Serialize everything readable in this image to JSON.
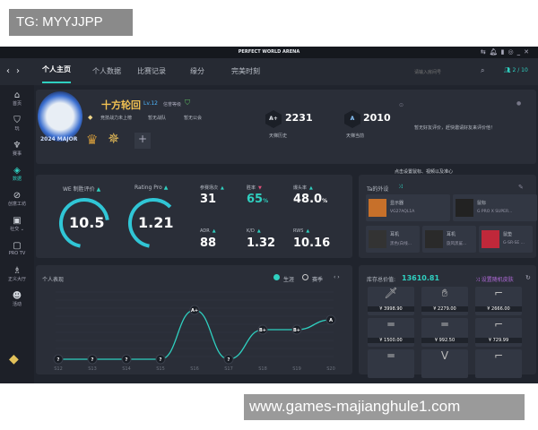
{
  "overlay": {
    "tg": "TG: MYYJJPP",
    "watermark": "www.games-majianghule1.com"
  },
  "window": {
    "title": "PERFECT WORLD ARENA",
    "icons": [
      "transfer-icon",
      "bell-icon",
      "signal-icon",
      "settings-icon",
      "minimize-icon",
      "close-icon"
    ]
  },
  "nav": {
    "back": "‹",
    "forward": "›",
    "tabs": [
      "个人主页",
      "个人数据",
      "比赛记录",
      "缘分",
      "完美时刻"
    ],
    "active_tab": 0,
    "search_placeholder": "请输入房间号",
    "friends": "2 / 10"
  },
  "sidebar": {
    "items": [
      {
        "label": "首页",
        "icon": "home-icon"
      },
      {
        "label": "玩",
        "icon": "play-icon"
      },
      {
        "label": "赛事",
        "icon": "trophy-icon"
      },
      {
        "label": "数据",
        "icon": "data-icon"
      },
      {
        "label": "创意工坊",
        "icon": "workshop-icon"
      },
      {
        "label": "社交 ⌄",
        "icon": "chat-icon"
      },
      {
        "label": "PRO TV",
        "icon": "tv-icon"
      },
      {
        "label": "正义大厅",
        "icon": "justice-icon"
      },
      {
        "label": "活动",
        "icon": "event-icon"
      }
    ],
    "active": 3
  },
  "profile": {
    "name": "十方轮回",
    "level": "Lv.12",
    "trust": "信誉等级",
    "tags": [
      "竞技战力未上榜",
      "暂无战队",
      "暂无公会"
    ],
    "avatar_text": "2024 MAJOR",
    "ranks": [
      {
        "badge": "A+",
        "score": "2231",
        "label": "天梯历史"
      },
      {
        "badge": "A",
        "score": "2010",
        "label": "天梯当前"
      }
    ],
    "review": "暂无好友评价，赶快邀请好友来评价他！",
    "add": "+"
  },
  "stats": {
    "we": {
      "label": "WE 制胜评价",
      "value": "10.5",
      "fill": 0.7
    },
    "rating": {
      "label": "Rating Pro",
      "value": "1.21",
      "fill": 0.6
    },
    "cells": [
      {
        "label": "参赛场次",
        "value": "31",
        "trend": "up"
      },
      {
        "label": "胜率",
        "value": "65",
        "unit": "%",
        "trend": "down",
        "accent": "#2fd0c0"
      },
      {
        "label": "爆头率",
        "value": "48.0",
        "unit": "%",
        "trend": "up"
      },
      {
        "label": "ADR",
        "value": "88",
        "trend": "up"
      },
      {
        "label": "K/D",
        "value": "1.32",
        "trend": "up"
      },
      {
        "label": "RWS",
        "value": "10.16",
        "trend": "up"
      }
    ]
  },
  "tooltip": "点击设置鼠标、视频以及准心",
  "peripherals": {
    "title": "Ta的外设",
    "items": [
      {
        "type": "显示器",
        "model": "VG27AQL1A"
      },
      {
        "type": "鼠标",
        "model": "G PRO X SUPER..."
      },
      {
        "type": "耳机",
        "model": "黑色(白线..."
      },
      {
        "type": "耳机",
        "model": "旋风黑鲨..."
      },
      {
        "type": "鼠垫",
        "model": "G-SR-SE ..."
      }
    ]
  },
  "chart_data": {
    "type": "line",
    "title": "个人表现",
    "legend": [
      {
        "label": "生涯",
        "selected": true
      },
      {
        "label": "赛季",
        "selected": false
      }
    ],
    "categories": [
      "S12",
      "S13",
      "S14",
      "S15",
      "S16",
      "S17",
      "S18",
      "S19",
      "S20"
    ],
    "grades": [
      "?",
      "?",
      "?",
      "?",
      "A+",
      "?",
      "B+",
      "B+",
      "A"
    ],
    "grade_scale": [
      "?",
      "C",
      "B",
      "B+",
      "A",
      "A+"
    ],
    "line_color": "#2fd0c0"
  },
  "inventory": {
    "label": "库存总价值:",
    "total": "13610.81",
    "random": "设置随机皮肤",
    "items": [
      {
        "name": "knife",
        "price": "¥ 3998.90"
      },
      {
        "name": "gloves",
        "price": "¥ 2279.00"
      },
      {
        "name": "pistol",
        "price": "¥ 2666.00"
      },
      {
        "name": "rifle",
        "price": "¥ 1500.00"
      },
      {
        "name": "sniper",
        "price": "¥ 992.50"
      },
      {
        "name": "deagle",
        "price": "¥ 729.99"
      },
      {
        "name": "ak",
        "price": ""
      },
      {
        "name": "sticker",
        "price": ""
      },
      {
        "name": "pistol2",
        "price": ""
      }
    ]
  }
}
